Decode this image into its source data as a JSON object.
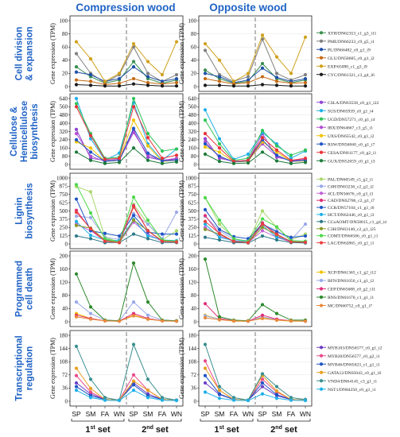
{
  "chart_data": {
    "type": "line",
    "columns": [
      "Compression wood",
      "Opposite wood"
    ],
    "x": [
      "SP",
      "SM",
      "FA",
      "WN",
      "SP",
      "SM",
      "FA",
      "WN"
    ],
    "set_labels": [
      "1st set",
      "2nd set"
    ],
    "ylabel": "Gene expression (TPM)",
    "rows": [
      {
        "title": [
          "Cell division",
          "& expansion"
        ],
        "ylim": [
          0,
          100
        ],
        "yticks": [
          0,
          20,
          40,
          60,
          80,
          100
        ],
        "series": [
          {
            "name": "XTH/DN62353_c1_g3_i11",
            "color": "#3a8f4f",
            "cw": [
              30,
              15,
              5,
              10,
              38,
              12,
              5,
              10
            ],
            "ow": [
              25,
              12,
              5,
              8,
              35,
              12,
              6,
              10
            ]
          },
          {
            "name": "PME/DN66233_c9_g5_i1",
            "color": "#7f7f7f",
            "cw": [
              50,
              20,
              6,
              18,
              60,
              20,
              8,
              18
            ],
            "ow": [
              55,
              18,
              8,
              15,
              72,
              20,
              10,
              18
            ]
          },
          {
            "name": "PL/DN66482_c0_g1_i9",
            "color": "#1f4fa8",
            "cw": [
              22,
              18,
              8,
              12,
              30,
              15,
              8,
              12
            ],
            "ow": [
              20,
              15,
              6,
              10,
              28,
              14,
              8,
              12
            ]
          },
          {
            "name": "GLU/DN58605_c0_g1_i2",
            "color": "#c46a14",
            "cw": [
              10,
              8,
              3,
              5,
              12,
              6,
              4,
              6
            ],
            "ow": [
              12,
              8,
              4,
              6,
              15,
              8,
              5,
              6
            ]
          },
          {
            "name": "EXP/65090_c1_g3_i9",
            "color": "#cfa11b",
            "cw": [
              68,
              42,
              8,
              20,
              65,
              38,
              18,
              68
            ],
            "ow": [
              65,
              40,
              8,
              20,
              78,
              45,
              20,
              75
            ]
          },
          {
            "name": "CYC/DN61321_c3_g4_i6",
            "color": "#1a1a1a",
            "cw": [
              3,
              2,
              1,
              1,
              4,
              2,
              1,
              1
            ],
            "ow": [
              2,
              2,
              1,
              1,
              3,
              2,
              1,
              1
            ]
          }
        ]
      },
      {
        "title": [
          "Cellulose &",
          "Hemicellulose",
          "biosynthesis"
        ],
        "ylim": [
          0,
          640
        ],
        "yticks": [
          0,
          80,
          160,
          240,
          320,
          400,
          480,
          560,
          640
        ],
        "series": [
          {
            "name": "CSLA/DN63558_c0_g1_i22",
            "color": "#8e44d0",
            "cw": [
              340,
              60,
              40,
              50,
              330,
              70,
              40,
              50
            ],
            "ow": [
              250,
              60,
              30,
              40,
              300,
              70,
              40,
              50
            ]
          },
          {
            "name": "SUS/DN65939_c0_g1_i4",
            "color": "#1fb0e8",
            "cw": [
              690,
              250,
              40,
              110,
              600,
              200,
              40,
              150
            ],
            "ow": [
              530,
              250,
              50,
              100,
              310,
              200,
              60,
              130
            ]
          },
          {
            "name": "UGD/DN57271_c0_g1_i4",
            "color": "#2fc45a",
            "cw": [
              590,
              300,
              60,
              70,
              720,
              300,
              130,
              150
            ],
            "ow": [
              430,
              200,
              40,
              60,
              330,
              180,
              90,
              140
            ]
          },
          {
            "name": "IRX/DN64667_c3_g5_i1",
            "color": "#b24fd0",
            "cw": [
              300,
              80,
              30,
              40,
              310,
              90,
              40,
              60
            ],
            "ow": [
              220,
              70,
              25,
              40,
              200,
              80,
              35,
              50
            ]
          },
          {
            "name": "UXS/DN65542_c0_g1_i2",
            "color": "#f2c200",
            "cw": [
              220,
              160,
              30,
              40,
              430,
              180,
              30,
              40
            ],
            "ow": [
              170,
              120,
              25,
              30,
              220,
              120,
              30,
              35
            ]
          },
          {
            "name": "RSW/DN56840_c0_g1_i7",
            "color": "#1f55c4",
            "cw": [
              240,
              120,
              30,
              40,
              350,
              110,
              35,
              40
            ],
            "ow": [
              200,
              80,
              25,
              35,
              240,
              90,
              30,
              40
            ]
          },
          {
            "name": "CESA/DN61177_c0_g2_i1",
            "color": "#e8333a",
            "cw": [
              560,
              280,
              50,
              60,
              560,
              260,
              60,
              90
            ],
            "ow": [
              300,
              160,
              30,
              40,
              260,
              140,
              40,
              60
            ]
          },
          {
            "name": "GUX/DN52659_c0_g1_i3",
            "color": "#1d7a3a",
            "cw": [
              120,
              40,
              10,
              20,
              160,
              40,
              10,
              25
            ],
            "ow": [
              100,
              30,
              10,
              15,
              120,
              35,
              10,
              20
            ]
          }
        ]
      },
      {
        "title": [
          "Lignin",
          "biosynthesis"
        ],
        "ylim": [
          0,
          1000
        ],
        "yticks": [
          0,
          125,
          250,
          375,
          500,
          625,
          750,
          875,
          1000
        ],
        "series": [
          {
            "name": "PAL/DN60549_c5_g2_i1",
            "color": "#a8d86a",
            "cw": [
              870,
              790,
              100,
              30,
              600,
              300,
              60,
              200
            ],
            "ow": [
              700,
              300,
              80,
              30,
              500,
              250,
              60,
              150
            ]
          },
          {
            "name": "C4H/DN63236_c2_g2_i2",
            "color": "#9aa9e8",
            "cw": [
              420,
              400,
              100,
              70,
              460,
              300,
              80,
              480
            ],
            "ow": [
              420,
              200,
              70,
              50,
              300,
              200,
              60,
              300
            ]
          },
          {
            "name": "4CL/DN56676_c0_g3_i3",
            "color": "#c264d8",
            "cw": [
              300,
              200,
              50,
              20,
              330,
              150,
              40,
              30
            ],
            "ow": [
              250,
              120,
              40,
              20,
              200,
              100,
              30,
              25
            ]
          },
          {
            "name": "CAD/DN62786_c2_g1_i7",
            "color": "#e0307a",
            "cw": [
              510,
              220,
              40,
              30,
              580,
              200,
              40,
              30
            ],
            "ow": [
              430,
              150,
              30,
              20,
              320,
              120,
              30,
              25
            ]
          },
          {
            "name": "CCR/DN57104_c1_g1_i6",
            "color": "#1f55c4",
            "cw": [
              680,
              200,
              160,
              120,
              430,
              180,
              150,
              150
            ],
            "ow": [
              520,
              220,
              110,
              80,
              300,
              180,
              100,
              120
            ]
          },
          {
            "name": "HCT/DN62446_c0_g1_i3",
            "color": "#1fb0e8",
            "cw": [
              340,
              130,
              60,
              50,
              370,
              120,
              60,
              50
            ],
            "ow": [
              300,
              100,
              50,
              40,
              280,
              100,
              50,
              40
            ]
          },
          {
            "name": "CCoAOMT/DN58815_c1_g4_i4",
            "color": "#2f7a8a",
            "cw": [
              120,
              80,
              20,
              20,
              150,
              80,
              20,
              20
            ],
            "ow": [
              100,
              60,
              20,
              15,
              120,
              60,
              20,
              15
            ]
          },
          {
            "name": "C3H/DN63140_c2_g1_i25",
            "color": "#8a9a2a",
            "cw": [
              280,
              240,
              60,
              20,
              360,
              200,
              50,
              30
            ],
            "ow": [
              220,
              150,
              40,
              20,
              250,
              140,
              40,
              25
            ]
          },
          {
            "name": "COMT/DN66586_c0_g1_i1",
            "color": "#4cd84c",
            "cw": [
              900,
              470,
              80,
              30,
              710,
              360,
              60,
              40
            ],
            "ow": [
              700,
              360,
              80,
              40,
              380,
              260,
              50,
              40
            ]
          },
          {
            "name": "LAC/DN62865_c0_g1_i1",
            "color": "#e84040",
            "cw": [
              480,
              230,
              40,
              20,
              560,
              200,
              40,
              30
            ],
            "ow": [
              340,
              160,
              40,
              20,
              300,
              150,
              30,
              25
            ]
          }
        ]
      },
      {
        "title": [
          "Programmed",
          "cell death"
        ],
        "ylim": [
          0,
          200
        ],
        "yticks": [
          0,
          40,
          80,
          120,
          160,
          200
        ],
        "series": [
          {
            "name": "XCP/DN61365_c1_g2_i12",
            "color": "#f2c200",
            "cw": [
              25,
              10,
              3,
              2,
              20,
              8,
              3,
              2
            ],
            "ow": [
              20,
              8,
              2,
              2,
              12,
              5,
              2,
              2
            ]
          },
          {
            "name": "BFN/DN61656_c1_g1_i2",
            "color": "#9aa9e8",
            "cw": [
              60,
              25,
              5,
              3,
              60,
              20,
              5,
              3
            ],
            "ow": [
              18,
              8,
              3,
              2,
              15,
              6,
              3,
              2
            ]
          },
          {
            "name": "CEP/DN65688_c0_g2_i11",
            "color": "#e0307a",
            "cw": [
              20,
              10,
              3,
              2,
              25,
              10,
              3,
              2
            ],
            "ow": [
              55,
              10,
              3,
              2,
              20,
              8,
              3,
              2
            ]
          },
          {
            "name": "RNS/DN61670_c1_g1_i1",
            "color": "#2d8a2d",
            "cw": [
              145,
              45,
              5,
              3,
              178,
              60,
              5,
              3
            ],
            "ow": [
              190,
              15,
              5,
              3,
              52,
              25,
              5,
              5
            ]
          },
          {
            "name": "MC/DN60752_c0_g1_i7",
            "color": "#e88a3a",
            "cw": [
              15,
              8,
              3,
              2,
              18,
              8,
              3,
              2
            ],
            "ow": [
              12,
              6,
              3,
              2,
              10,
              5,
              3,
              2
            ]
          }
        ]
      },
      {
        "title": [
          "Transcriptional",
          "regulation"
        ],
        "ylim": [
          0,
          180
        ],
        "yticks": [
          0,
          36,
          72,
          108,
          144,
          180
        ],
        "series": [
          {
            "name": "MYB103/DN56577_c0_g1_i2",
            "color": "#6a3fc4",
            "cw": [
              50,
              20,
              5,
              3,
              50,
              20,
              5,
              3
            ],
            "ow": [
              50,
              18,
              5,
              3,
              40,
              15,
              5,
              3
            ]
          },
          {
            "name": "MYB20/DN56577_c0_g2_i1",
            "color": "#e84a8a",
            "cw": [
              70,
              25,
              5,
              3,
              72,
              30,
              5,
              3
            ],
            "ow": [
              110,
              30,
              5,
              3,
              60,
              25,
              5,
              3
            ]
          },
          {
            "name": "MYB46/DN65623_c1_g1_i1",
            "color": "#1f55c4",
            "cw": [
              40,
              15,
              5,
              3,
              45,
              15,
              5,
              3
            ],
            "ow": [
              70,
              20,
              5,
              3,
              50,
              18,
              5,
              3
            ]
          },
          {
            "name": "GATA12/DN65043_c0_g1_i6",
            "color": "#e8a020",
            "cw": [
              90,
              35,
              5,
              3,
              55,
              30,
              5,
              3
            ],
            "ow": [
              90,
              30,
              5,
              3,
              70,
              28,
              5,
              3
            ]
          },
          {
            "name": "VND4/DN64145_c3_g1_i1",
            "color": "#3a8f8f",
            "cw": [
              150,
              60,
              10,
              3,
              155,
              60,
              10,
              3
            ],
            "ow": [
              155,
              40,
              10,
              3,
              75,
              40,
              10,
              5
            ]
          },
          {
            "name": "NST1/DN84250_c0_g1_i1",
            "color": "#1fb0e8",
            "cw": [
              30,
              10,
              3,
              2,
              30,
              10,
              3,
              2
            ],
            "ow": [
              25,
              8,
              3,
              2,
              20,
              8,
              3,
              2
            ]
          }
        ]
      }
    ]
  }
}
